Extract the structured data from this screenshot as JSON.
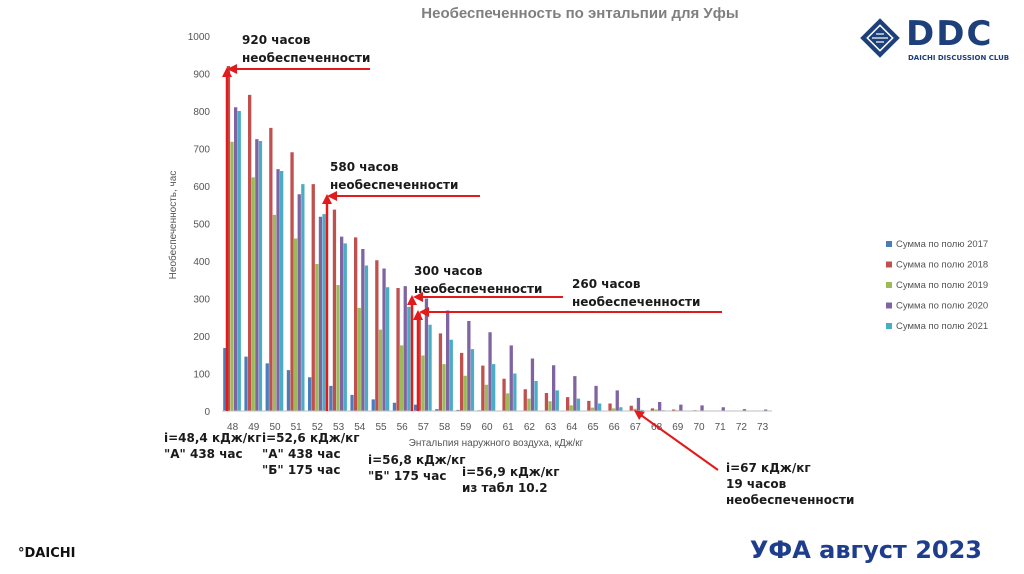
{
  "chart_data": {
    "type": "bar",
    "title": "Необеспеченность по энтальпии для Уфы",
    "xlabel": "Энтальпия наружного воздуха, кДж/кг",
    "ylabel": "Необеспеченность, час",
    "ylim": [
      0,
      1000
    ],
    "yticks": [
      "0",
      "100",
      "200",
      "300",
      "400",
      "500",
      "600",
      "700",
      "800",
      "900",
      "1000"
    ],
    "categories": [
      "48",
      "49",
      "50",
      "51",
      "52",
      "53",
      "54",
      "55",
      "56",
      "57",
      "58",
      "59",
      "60",
      "61",
      "62",
      "63",
      "64",
      "65",
      "66",
      "67",
      "68",
      "69",
      "70",
      "71",
      "72",
      "73"
    ],
    "series": [
      {
        "name": "Сумма по полю 2017",
        "color": "#4a7ebb",
        "values": [
          168,
          145,
          127,
          109,
          90,
          67,
          43,
          31,
          22,
          17,
          5,
          3,
          2,
          1,
          1,
          0,
          0,
          0,
          0,
          0,
          0,
          0,
          0,
          0,
          0,
          0
        ]
      },
      {
        "name": "Сумма по полю 2018",
        "color": "#c0504d",
        "values": [
          920,
          843,
          755,
          690,
          605,
          537,
          463,
          402,
          328,
          262,
          207,
          155,
          121,
          86,
          58,
          48,
          37,
          27,
          20,
          14,
          7,
          4,
          2,
          1,
          1,
          0
        ]
      },
      {
        "name": "Сумма по полю 2019",
        "color": "#9bbb59",
        "values": [
          718,
          623,
          523,
          460,
          392,
          336,
          275,
          217,
          175,
          148,
          125,
          94,
          70,
          47,
          33,
          26,
          15,
          9,
          7,
          6,
          4,
          2,
          1,
          0,
          0,
          0
        ]
      },
      {
        "name": "Сумма по полю 2020",
        "color": "#8064a2",
        "values": [
          810,
          725,
          645,
          578,
          518,
          465,
          432,
          380,
          333,
          300,
          268,
          240,
          210,
          175,
          140,
          122,
          93,
          67,
          55,
          35,
          24,
          17,
          15,
          10,
          5,
          4
        ]
      },
      {
        "name": "Сумма по полю 2021",
        "color": "#4bacc6",
        "values": [
          800,
          720,
          640,
          605,
          525,
          447,
          388,
          330,
          278,
          230,
          190,
          165,
          125,
          100,
          80,
          55,
          33,
          20,
          10,
          3,
          2,
          1,
          1,
          0,
          0,
          0
        ]
      }
    ]
  },
  "annotations": {
    "a920": [
      "920 часов",
      "необеспеченности"
    ],
    "a580": [
      "580 часов",
      "необеспеченности"
    ],
    "a300": [
      "300 часов",
      "необеспеченности"
    ],
    "a260": [
      "260 часов",
      "необеспеченности"
    ],
    "b1": [
      "i=48,4 кДж/кг",
      "\"А\" 438 час"
    ],
    "b2": [
      "i=52,6 кДж/кг",
      "\"А\" 438 час",
      "\"Б\" 175 час"
    ],
    "b3": [
      "i=56,8 кДж/кг",
      "\"Б\" 175 час"
    ],
    "b4": [
      "i=56,9 кДж/кг",
      "из табл 10.2"
    ],
    "b5": [
      "i=67 кДж/кг",
      "19 часов",
      "необеспеченности"
    ]
  },
  "logo": {
    "name": "DDC",
    "subtitle": "DAICHI DISCUSSION CLUB"
  },
  "footer": {
    "brand": "°DAICHI",
    "title": "УФА август 2023"
  },
  "colors": {
    "arrow": "#e31a1c",
    "accent": "#1e3d8c"
  }
}
